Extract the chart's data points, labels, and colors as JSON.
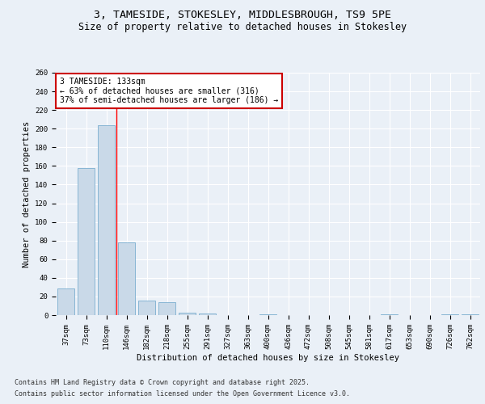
{
  "title_line1": "3, TAMESIDE, STOKESLEY, MIDDLESBROUGH, TS9 5PE",
  "title_line2": "Size of property relative to detached houses in Stokesley",
  "xlabel": "Distribution of detached houses by size in Stokesley",
  "ylabel": "Number of detached properties",
  "categories": [
    "37sqm",
    "73sqm",
    "110sqm",
    "146sqm",
    "182sqm",
    "218sqm",
    "255sqm",
    "291sqm",
    "327sqm",
    "363sqm",
    "400sqm",
    "436sqm",
    "472sqm",
    "508sqm",
    "545sqm",
    "581sqm",
    "617sqm",
    "653sqm",
    "690sqm",
    "726sqm",
    "762sqm"
  ],
  "values": [
    29,
    158,
    204,
    78,
    16,
    14,
    3,
    2,
    0,
    0,
    1,
    0,
    0,
    0,
    0,
    0,
    1,
    0,
    0,
    1,
    1
  ],
  "bar_color": "#c9d9e8",
  "bar_edgecolor": "#7aaecf",
  "red_line_x": 2.5,
  "annotation_text": "3 TAMESIDE: 133sqm\n← 63% of detached houses are smaller (316)\n37% of semi-detached houses are larger (186) →",
  "annotation_box_color": "#ffffff",
  "annotation_box_edgecolor": "#cc0000",
  "ylim": [
    0,
    260
  ],
  "yticks": [
    0,
    20,
    40,
    60,
    80,
    100,
    120,
    140,
    160,
    180,
    200,
    220,
    240,
    260
  ],
  "background_color": "#eaf0f7",
  "grid_color": "#ffffff",
  "footnote1": "Contains HM Land Registry data © Crown copyright and database right 2025.",
  "footnote2": "Contains public sector information licensed under the Open Government Licence v3.0.",
  "title_fontsize": 9.5,
  "subtitle_fontsize": 8.5,
  "axis_label_fontsize": 7.5,
  "tick_fontsize": 6.5,
  "annotation_fontsize": 7,
  "footnote_fontsize": 6
}
